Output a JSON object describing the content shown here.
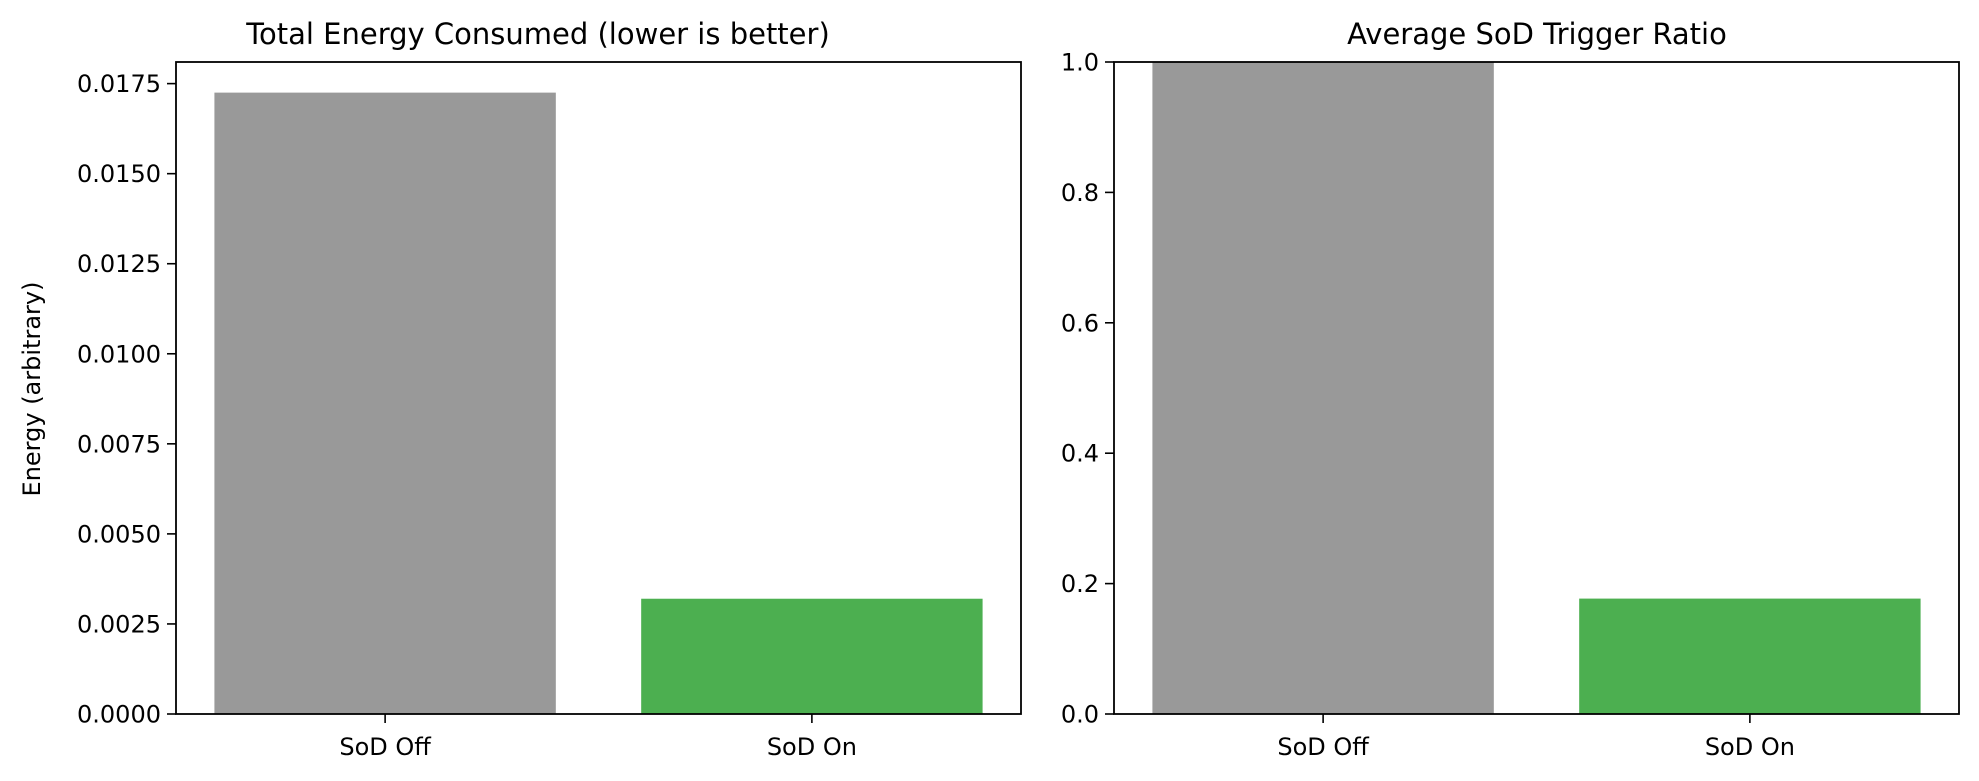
{
  "chart_data": [
    {
      "type": "bar",
      "title": "Total Energy Consumed (lower is better)",
      "xlabel": "",
      "ylabel": "Energy (arbitrary)",
      "categories": [
        "SoD Off",
        "SoD On"
      ],
      "values": [
        0.01725,
        0.0032
      ],
      "colors": [
        "#999999",
        "#4caf50"
      ],
      "ylim": [
        0,
        0.0181
      ],
      "yticks": [
        0.0,
        0.0025,
        0.005,
        0.0075,
        0.01,
        0.0125,
        0.015,
        0.0175
      ],
      "ytick_labels": [
        "0.0000",
        "0.0025",
        "0.0050",
        "0.0075",
        "0.0100",
        "0.0125",
        "0.0150",
        "0.0175"
      ],
      "grid": false
    },
    {
      "type": "bar",
      "title": "Average SoD Trigger Ratio",
      "xlabel": "",
      "ylabel": "",
      "categories": [
        "SoD Off",
        "SoD On"
      ],
      "values": [
        1.0,
        0.177
      ],
      "colors": [
        "#999999",
        "#4caf50"
      ],
      "ylim": [
        0,
        1.0
      ],
      "yticks": [
        0.0,
        0.2,
        0.4,
        0.6,
        0.8,
        1.0
      ],
      "ytick_labels": [
        "0.0",
        "0.2",
        "0.4",
        "0.6",
        "0.8",
        "1.0"
      ],
      "grid": false
    }
  ]
}
